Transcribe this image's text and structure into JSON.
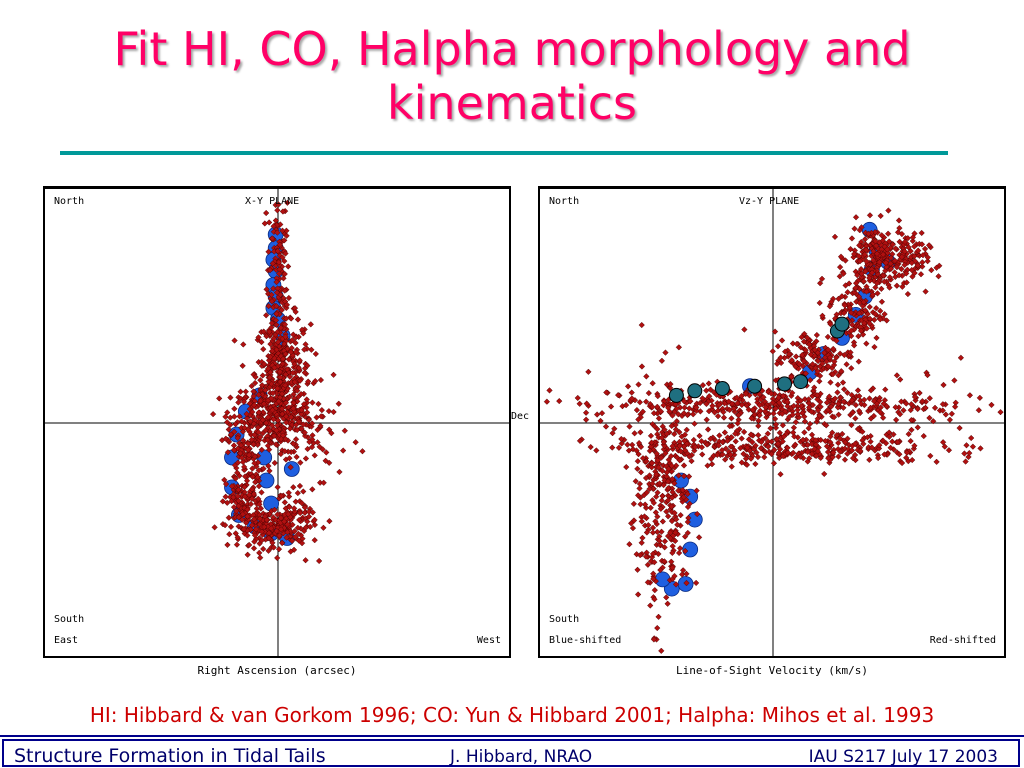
{
  "slide": {
    "title": "Fit HI, CO, Halpha morphology and kinematics",
    "citation": "HI: Hibbard & van Gorkom 1996; CO: Yun & Hibbard 2001; Halpha: Mihos et al. 1993",
    "dec_label": "Dec",
    "footer": {
      "left": "Structure Formation in Tidal Tails",
      "middle": "J. Hibbard, NRAO",
      "right": "IAU S217  July 17 2003"
    }
  },
  "colors": {
    "title": "#ff0066",
    "rule": "#009999",
    "particles": "#b01010",
    "hi_dots": "#1f5fe0",
    "co_dots": "#1f6f80",
    "citation": "#cc0000",
    "footer_text": "#00006b"
  },
  "chart_data": [
    {
      "type": "scatter",
      "title": "X-Y  PLANE",
      "xlabel": "Right Ascension (arcsec)",
      "ylabel": "",
      "corner_labels": {
        "top_left": "North",
        "bottom_left_1": "South",
        "bottom_left_2": "East",
        "bottom_right": "West"
      },
      "hi_points": [
        [
          -0.01,
          0.82
        ],
        [
          -0.01,
          0.76
        ],
        [
          -0.02,
          0.71
        ],
        [
          -0.01,
          0.66
        ],
        [
          -0.02,
          0.6
        ],
        [
          -0.01,
          0.55
        ],
        [
          -0.02,
          0.5
        ],
        [
          0.0,
          0.45
        ],
        [
          0.02,
          0.38
        ],
        [
          0.01,
          0.32
        ],
        [
          -0.08,
          0.12
        ],
        [
          -0.14,
          0.05
        ],
        [
          -0.18,
          -0.05
        ],
        [
          -0.2,
          -0.15
        ],
        [
          -0.2,
          -0.28
        ],
        [
          -0.17,
          -0.4
        ],
        [
          -0.1,
          -0.45
        ],
        [
          -0.03,
          -0.48
        ],
        [
          0.04,
          -0.5
        ],
        [
          0.06,
          -0.2
        ],
        [
          -0.05,
          -0.25
        ],
        [
          -0.03,
          -0.35
        ],
        [
          -0.06,
          -0.15
        ]
      ],
      "co_points": [],
      "particles": [
        {
          "cx": 0.0,
          "cy": 0.6,
          "sx": 0.025,
          "sy": 0.25,
          "n": 160
        },
        {
          "cx": 0.02,
          "cy": 0.22,
          "sx": 0.06,
          "sy": 0.12,
          "n": 320
        },
        {
          "cx": -0.02,
          "cy": 0.02,
          "sx": 0.09,
          "sy": 0.08,
          "n": 260
        },
        {
          "cx": -0.14,
          "cy": -0.12,
          "sx": 0.04,
          "sy": 0.12,
          "n": 120
        },
        {
          "cx": -0.15,
          "cy": -0.35,
          "sx": 0.04,
          "sy": 0.07,
          "n": 110
        },
        {
          "cx": -0.05,
          "cy": -0.46,
          "sx": 0.06,
          "sy": 0.04,
          "n": 140
        },
        {
          "cx": 0.06,
          "cy": -0.44,
          "sx": 0.05,
          "sy": 0.05,
          "n": 90
        },
        {
          "cx": 0.15,
          "cy": -0.05,
          "sx": 0.08,
          "sy": 0.1,
          "n": 40
        },
        {
          "cx": 0.09,
          "cy": -0.3,
          "sx": 0.08,
          "sy": 0.12,
          "n": 30
        }
      ]
    },
    {
      "type": "scatter",
      "title": "Vz-Y  PLANE",
      "xlabel": "Line-of-Sight Velocity (km/s)",
      "ylabel": "",
      "corner_labels": {
        "top_left": "North",
        "bottom_left_1": "South",
        "bottom_left_2": "Blue-shifted",
        "bottom_right": "Red-shifted"
      },
      "hi_points": [
        [
          0.42,
          0.84
        ],
        [
          0.45,
          0.75
        ],
        [
          0.5,
          0.7
        ],
        [
          0.43,
          0.67
        ],
        [
          0.4,
          0.55
        ],
        [
          0.36,
          0.47
        ],
        [
          0.3,
          0.37
        ],
        [
          0.22,
          0.3
        ],
        [
          0.16,
          0.22
        ],
        [
          -0.1,
          0.16
        ],
        [
          -0.4,
          -0.25
        ],
        [
          -0.36,
          -0.32
        ],
        [
          -0.34,
          -0.42
        ],
        [
          -0.36,
          -0.55
        ],
        [
          -0.44,
          -0.72
        ],
        [
          -0.48,
          -0.68
        ],
        [
          -0.38,
          -0.7
        ]
      ],
      "co_points": [
        [
          -0.42,
          0.12
        ],
        [
          -0.34,
          0.14
        ],
        [
          -0.22,
          0.15
        ],
        [
          -0.08,
          0.16
        ],
        [
          0.05,
          0.17
        ],
        [
          0.12,
          0.18
        ],
        [
          0.28,
          0.4
        ],
        [
          0.3,
          0.43
        ]
      ],
      "particles": [
        {
          "cx": 0.45,
          "cy": 0.72,
          "sx": 0.06,
          "sy": 0.07,
          "n": 200
        },
        {
          "cx": 0.58,
          "cy": 0.7,
          "sx": 0.05,
          "sy": 0.06,
          "n": 80
        },
        {
          "cx": 0.36,
          "cy": 0.48,
          "sx": 0.06,
          "sy": 0.08,
          "n": 140
        },
        {
          "cx": 0.18,
          "cy": 0.28,
          "sx": 0.09,
          "sy": 0.06,
          "n": 140
        },
        {
          "cx": -0.05,
          "cy": 0.08,
          "sx": 0.38,
          "sy": 0.04,
          "n": 420
        },
        {
          "cx": 0.0,
          "cy": -0.1,
          "sx": 0.35,
          "sy": 0.04,
          "n": 380
        },
        {
          "cx": -0.45,
          "cy": -0.35,
          "sx": 0.05,
          "sy": 0.25,
          "n": 220
        },
        {
          "cx": -0.55,
          "cy": -0.4,
          "sx": 0.05,
          "sy": 0.25,
          "n": 80
        },
        {
          "cx": 0.55,
          "cy": 0.05,
          "sx": 0.2,
          "sy": 0.12,
          "n": 40
        }
      ]
    }
  ]
}
